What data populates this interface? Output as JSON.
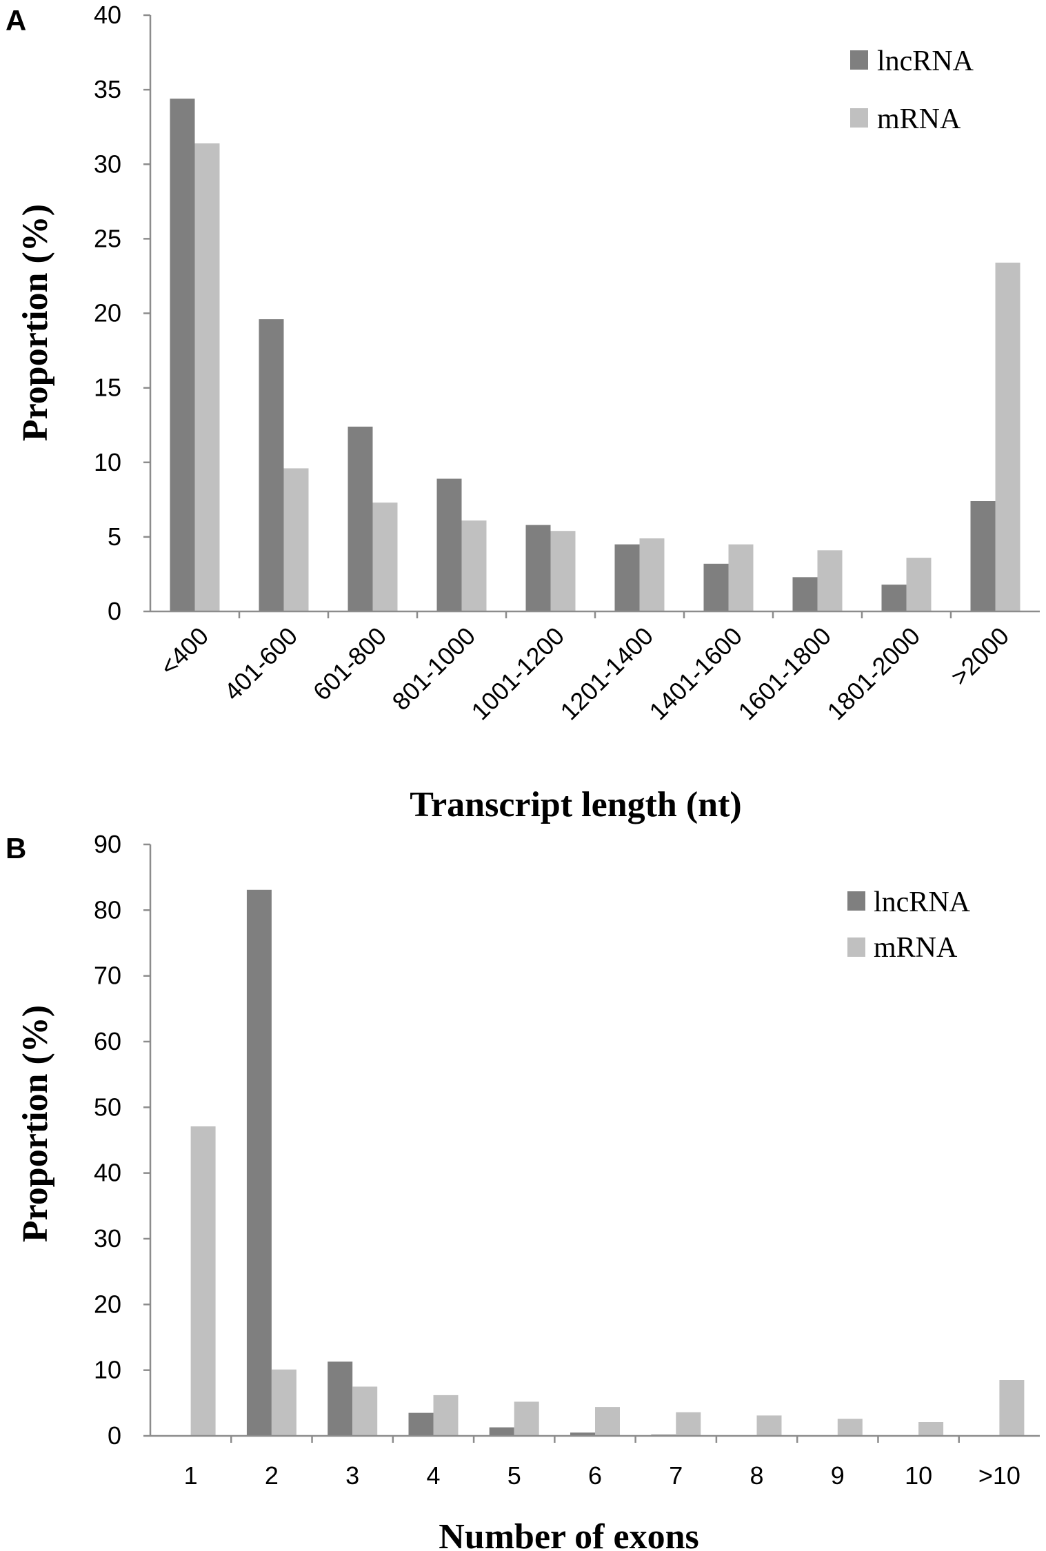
{
  "chart_data": [
    {
      "type": "bar",
      "panel_label": "A",
      "title": "",
      "xlabel": "Transcript length (nt)",
      "ylabel": "Proportion (%)",
      "ylim": [
        0,
        40
      ],
      "yticks": [
        0,
        5,
        10,
        15,
        20,
        25,
        30,
        35,
        40
      ],
      "categories": [
        "<400",
        "401-600",
        "601-800",
        "801-1000",
        "1001-1200",
        "1201-1400",
        "1401-1600",
        "1601-1800",
        "1801-2000",
        ">2000"
      ],
      "series": [
        {
          "name": "lncRNA",
          "color": "#7f7f7f",
          "values": [
            34.4,
            19.6,
            12.4,
            8.9,
            5.8,
            4.5,
            3.2,
            2.3,
            1.8,
            7.4
          ]
        },
        {
          "name": "mRNA",
          "color": "#c0c0c0",
          "values": [
            31.4,
            9.6,
            7.3,
            6.1,
            5.4,
            4.9,
            4.5,
            4.1,
            3.6,
            23.4
          ]
        }
      ],
      "legend_position": "top-right",
      "grid": false
    },
    {
      "type": "bar",
      "panel_label": "B",
      "title": "",
      "xlabel": "Number of exons",
      "ylabel": "Proportion (%)",
      "ylim": [
        0,
        90
      ],
      "yticks": [
        0,
        10,
        20,
        30,
        40,
        50,
        60,
        70,
        80,
        90
      ],
      "categories": [
        "1",
        "2",
        "3",
        "4",
        "5",
        "6",
        "7",
        "8",
        "9",
        "10",
        ">10"
      ],
      "series": [
        {
          "name": "lncRNA",
          "color": "#7f7f7f",
          "values": [
            0,
            83.1,
            11.3,
            3.5,
            1.3,
            0.5,
            0.2,
            0.1,
            0.05,
            0.05,
            0.1
          ]
        },
        {
          "name": "mRNA",
          "color": "#c0c0c0",
          "values": [
            47.1,
            10.1,
            7.5,
            6.2,
            5.2,
            4.4,
            3.6,
            3.1,
            2.6,
            2.1,
            8.5
          ]
        }
      ],
      "legend_position": "top-right",
      "grid": false
    }
  ]
}
